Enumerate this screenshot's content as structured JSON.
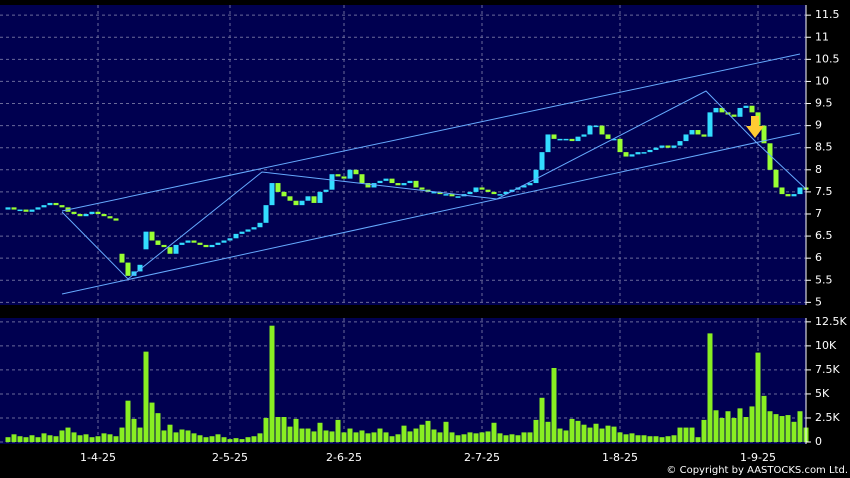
{
  "chart_data": {
    "type": "candlestick",
    "categories": [
      null,
      null,
      null,
      null,
      null,
      null,
      null,
      null,
      null,
      null,
      null,
      null,
      null,
      null,
      null,
      "1-4-25",
      null,
      null,
      null,
      null,
      null,
      null,
      null,
      null,
      null,
      null,
      null,
      null,
      null,
      null,
      null,
      null,
      null,
      null,
      null,
      null,
      null,
      "2-5-25",
      null,
      null,
      null,
      null,
      null,
      null,
      null,
      null,
      null,
      null,
      null,
      null,
      null,
      null,
      null,
      null,
      null,
      null,
      "2-6-25",
      null,
      null,
      null,
      null,
      null,
      null,
      null,
      null,
      null,
      null,
      null,
      null,
      null,
      null,
      null,
      null,
      null,
      null,
      null,
      null,
      null,
      null,
      "2-7-25",
      null,
      null,
      null,
      null,
      null,
      null,
      null,
      null,
      null,
      null,
      null,
      null,
      null,
      null,
      null,
      null,
      null,
      null,
      null,
      null,
      null,
      null,
      "1-8-25",
      null,
      null,
      null,
      null,
      null,
      null,
      null,
      null,
      null,
      null,
      null,
      null,
      null,
      null,
      null,
      null,
      null,
      null,
      null,
      null,
      null,
      null,
      "1-9-25",
      null,
      null,
      null,
      null,
      null,
      null,
      null,
      null
    ],
    "open": [
      7.1,
      7.15,
      7.1,
      7.1,
      7.05,
      7.1,
      7.15,
      7.2,
      7.25,
      7.2,
      7.15,
      7.05,
      7.0,
      6.95,
      7.0,
      7.05,
      7.0,
      6.95,
      6.9,
      6.1,
      5.9,
      5.6,
      5.7,
      6.2,
      6.6,
      6.4,
      6.3,
      6.25,
      6.1,
      6.3,
      6.35,
      6.4,
      6.35,
      6.3,
      6.25,
      6.3,
      6.35,
      6.4,
      6.45,
      6.55,
      6.6,
      6.65,
      6.7,
      6.8,
      7.2,
      7.7,
      7.5,
      7.4,
      7.3,
      7.2,
      7.3,
      7.4,
      7.25,
      7.5,
      7.55,
      7.9,
      7.85,
      7.8,
      8.0,
      7.9,
      7.7,
      7.6,
      7.7,
      7.75,
      7.8,
      7.7,
      7.65,
      7.7,
      7.75,
      7.6,
      7.55,
      7.5,
      7.5,
      7.45,
      7.45,
      7.4,
      7.4,
      7.45,
      7.5,
      7.6,
      7.55,
      7.5,
      7.45,
      7.45,
      7.5,
      7.55,
      7.6,
      7.65,
      7.7,
      8.0,
      8.4,
      8.8,
      8.7,
      8.7,
      8.7,
      8.65,
      8.75,
      8.8,
      9.0,
      9.0,
      8.8,
      8.7,
      8.7,
      8.4,
      8.3,
      8.35,
      8.4,
      8.4,
      8.45,
      8.5,
      8.55,
      8.5,
      8.55,
      8.65,
      8.8,
      8.9,
      8.8,
      8.75,
      9.3,
      9.4,
      9.3,
      9.25,
      9.2,
      9.4,
      9.45,
      9.3,
      9.0,
      8.6,
      8.0,
      7.6,
      7.45,
      7.4,
      7.45,
      7.6
    ],
    "close": [
      7.15,
      7.1,
      7.1,
      7.05,
      7.1,
      7.15,
      7.2,
      7.25,
      7.2,
      7.15,
      7.05,
      7.0,
      6.95,
      7.0,
      7.05,
      7.0,
      6.95,
      6.9,
      6.85,
      5.9,
      5.6,
      5.7,
      5.85,
      6.6,
      6.4,
      6.3,
      6.25,
      6.1,
      6.3,
      6.35,
      6.4,
      6.35,
      6.3,
      6.25,
      6.3,
      6.35,
      6.4,
      6.45,
      6.55,
      6.6,
      6.65,
      6.7,
      6.8,
      7.2,
      7.7,
      7.5,
      7.4,
      7.3,
      7.2,
      7.3,
      7.4,
      7.25,
      7.5,
      7.55,
      7.9,
      7.85,
      7.8,
      8.0,
      7.9,
      7.7,
      7.6,
      7.7,
      7.75,
      7.8,
      7.7,
      7.65,
      7.7,
      7.75,
      7.6,
      7.55,
      7.5,
      7.5,
      7.45,
      7.45,
      7.4,
      7.4,
      7.45,
      7.5,
      7.6,
      7.55,
      7.5,
      7.45,
      7.45,
      7.5,
      7.55,
      7.6,
      7.65,
      7.7,
      8.0,
      8.4,
      8.8,
      8.7,
      8.7,
      8.7,
      8.65,
      8.75,
      8.8,
      9.0,
      9.0,
      8.8,
      8.7,
      8.7,
      8.4,
      8.3,
      8.35,
      8.4,
      8.4,
      8.45,
      8.5,
      8.55,
      8.5,
      8.55,
      8.65,
      8.8,
      8.9,
      8.8,
      8.75,
      9.3,
      9.4,
      9.3,
      9.25,
      9.2,
      9.4,
      9.45,
      9.3,
      9.0,
      8.6,
      8.0,
      7.6,
      7.45,
      7.4,
      7.45,
      7.6,
      7.55
    ],
    "volume": [
      500,
      800,
      600,
      500,
      700,
      500,
      900,
      700,
      600,
      1200,
      1500,
      1000,
      700,
      800,
      500,
      600,
      900,
      800,
      600,
      1500,
      4300,
      2400,
      1500,
      9400,
      4100,
      3000,
      1200,
      1800,
      1000,
      1300,
      1200,
      900,
      700,
      500,
      600,
      800,
      500,
      300,
      400,
      300,
      500,
      600,
      900,
      2500,
      12100,
      2600,
      2600,
      1600,
      2400,
      1400,
      1400,
      1100,
      2000,
      1200,
      1100,
      2300,
      1000,
      1400,
      1000,
      1200,
      900,
      1000,
      1400,
      1000,
      600,
      800,
      1700,
      1100,
      1400,
      1800,
      2200,
      1300,
      1000,
      2100,
      1000,
      700,
      800,
      1000,
      900,
      1000,
      1100,
      2000,
      900,
      700,
      800,
      700,
      1000,
      1000,
      2300,
      4600,
      2100,
      7700,
      1400,
      1200,
      2400,
      2200,
      1800,
      1500,
      1900,
      1400,
      1700,
      1600,
      1000,
      800,
      900,
      700,
      700,
      600,
      600,
      500,
      600,
      700,
      1500,
      1500,
      1500,
      500,
      2300,
      11300,
      3300,
      2500,
      3200,
      2500,
      3500,
      2600,
      3700,
      9300,
      4800,
      3200,
      2900,
      2700,
      2800,
      2100,
      3200,
      1500
    ],
    "up_color": "#33ddff",
    "down_color": "#99ff33",
    "volume_color": "#88ee22",
    "ylim": [
      4.94,
      11.73
    ],
    "yticks": [
      5,
      5.5,
      6,
      6.5,
      7,
      7.5,
      8,
      8.5,
      9,
      9.5,
      10,
      10.5,
      11,
      11.5
    ],
    "volume_ylim": [
      0,
      12900
    ],
    "volume_yticks": [
      0,
      {
        "value": 2500,
        "label": "2.5K"
      },
      {
        "value": 5000,
        "label": "5K"
      },
      {
        "value": 7500,
        "label": "7.5K"
      },
      {
        "value": 10000,
        "label": "10K"
      },
      {
        "value": 12500,
        "label": "12.5K"
      }
    ],
    "grid": true,
    "copyright": "© Copyright by AASTOCKS.com Ltd."
  }
}
